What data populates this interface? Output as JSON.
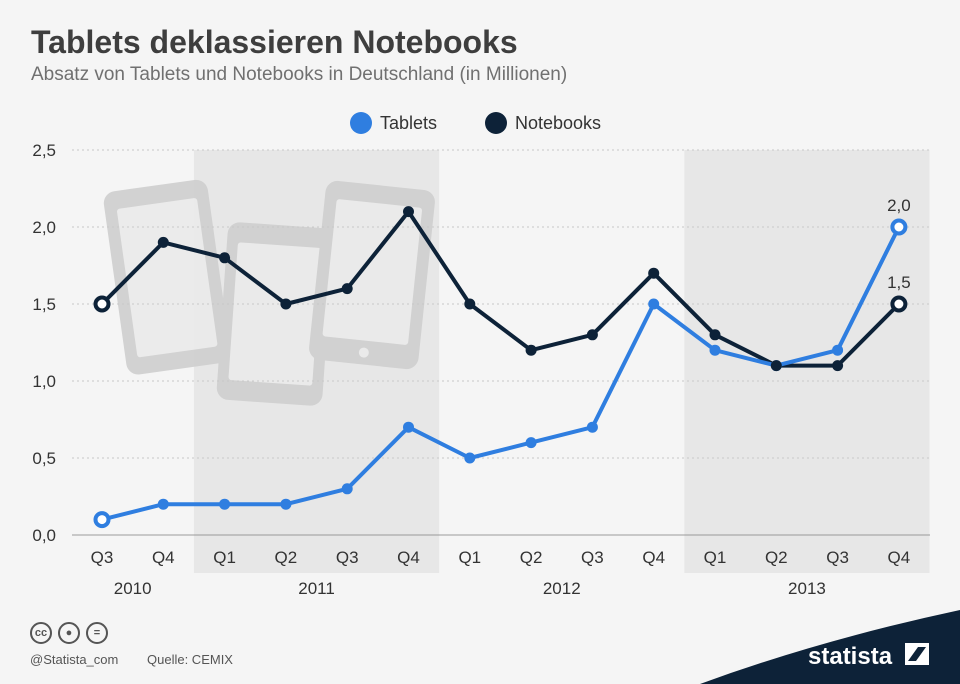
{
  "header": {
    "title": "Tablets deklassieren Notebooks",
    "subtitle": "Absatz von Tablets und Notebooks in Deutschland (in Millionen)"
  },
  "footer": {
    "handle": "@Statista_com",
    "source": "Quelle: CEMIX",
    "logo": "statista",
    "license_icons": [
      "cc-icon",
      "by-icon",
      "nd-icon"
    ]
  },
  "colors": {
    "tablets": "#2f7ee0",
    "notebooks": "#0d2238",
    "band": "#e7e7e7",
    "bg": "#f5f5f5"
  },
  "chart_data": {
    "type": "line",
    "categories": [
      "Q3",
      "Q4",
      "Q1",
      "Q2",
      "Q3",
      "Q4",
      "Q1",
      "Q2",
      "Q3",
      "Q4",
      "Q1",
      "Q2",
      "Q3",
      "Q4"
    ],
    "years": [
      {
        "label": "2010",
        "from": 0,
        "to": 1,
        "shaded": false
      },
      {
        "label": "2011",
        "from": 2,
        "to": 5,
        "shaded": true
      },
      {
        "label": "2012",
        "from": 6,
        "to": 9,
        "shaded": false
      },
      {
        "label": "2013",
        "from": 10,
        "to": 13,
        "shaded": true
      }
    ],
    "series": [
      {
        "name": "Tablets",
        "color": "#2f7ee0",
        "values": [
          0.1,
          0.2,
          0.2,
          0.2,
          0.3,
          0.7,
          0.5,
          0.6,
          0.7,
          1.5,
          1.2,
          1.1,
          1.2,
          2.0
        ]
      },
      {
        "name": "Notebooks",
        "color": "#0d2238",
        "values": [
          1.5,
          1.9,
          1.8,
          1.5,
          1.6,
          2.1,
          1.5,
          1.2,
          1.3,
          1.7,
          1.3,
          1.1,
          1.1,
          1.5
        ]
      }
    ],
    "end_labels": [
      "2,0",
      "1,5"
    ],
    "ylim": [
      0,
      2.5
    ],
    "yticks": [
      0,
      0.5,
      1.0,
      1.5,
      2.0,
      2.5
    ],
    "ytick_labels": [
      "0,0",
      "0,5",
      "1,0",
      "1,5",
      "2,0",
      "2,5"
    ],
    "legend_position": "top-center",
    "grid": true
  }
}
